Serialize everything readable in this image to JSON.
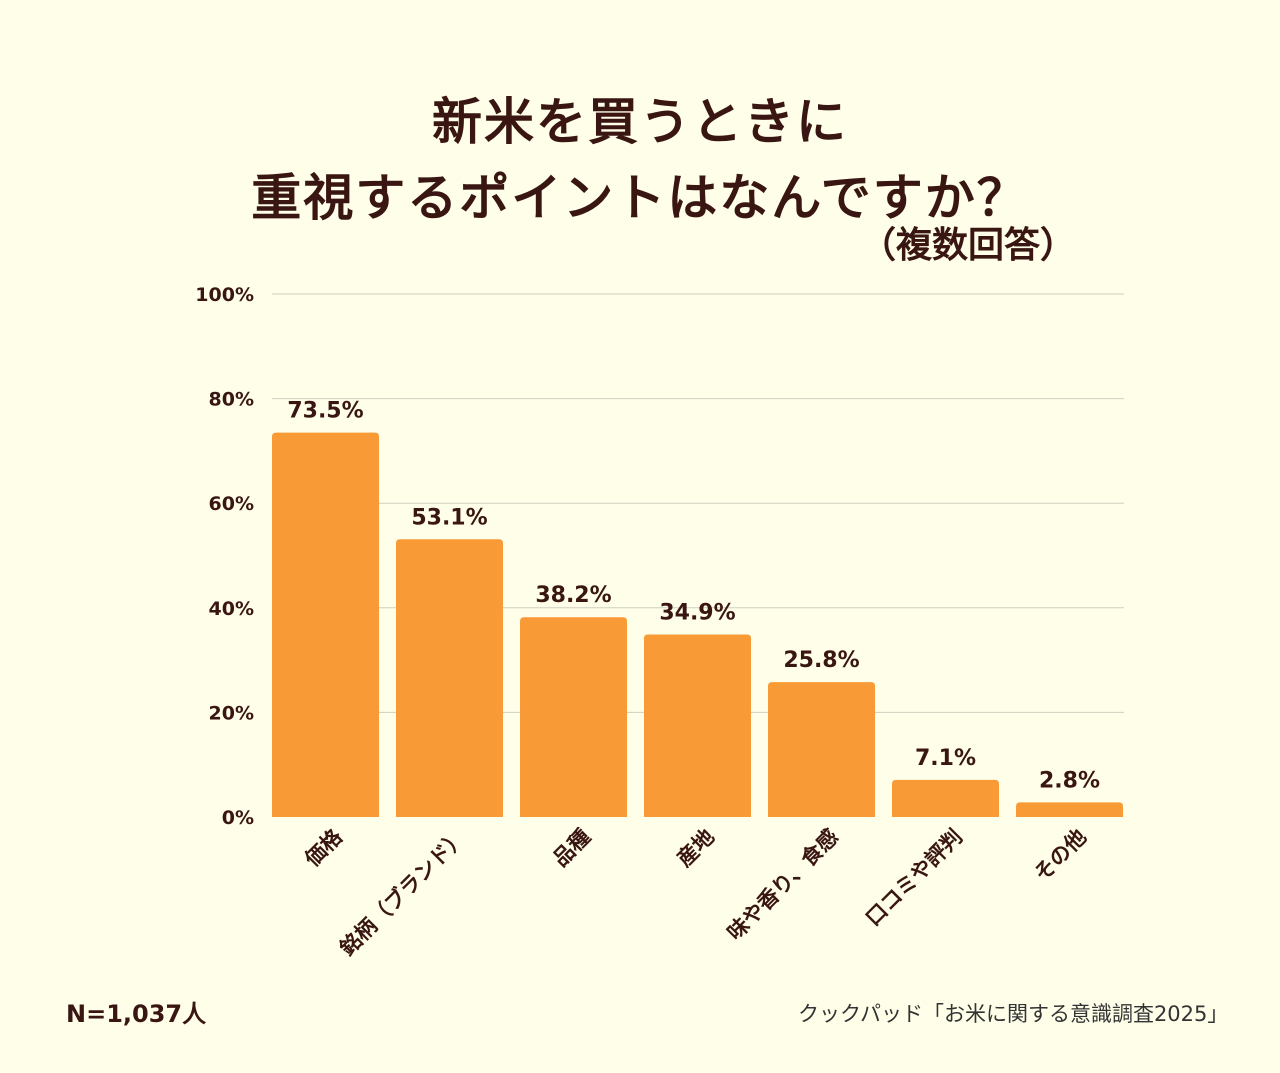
{
  "title_line1": "新米を買うときに",
  "title_line2": "重視するポイントはなんですか？",
  "subtitle": "（複数回答）",
  "sample_size": "N=1,037人",
  "source": "クックパッド「お米に関する意識調査2025」",
  "colors": {
    "background": "#fefee9",
    "bar": "#f89a35",
    "text": "#3a1612",
    "grid": "#cfcfc0"
  },
  "chart_data": {
    "type": "bar",
    "categories": [
      "価格",
      "銘柄（ブランド）",
      "品種",
      "産地",
      "味や香り、食感",
      "口コミや評判",
      "その他"
    ],
    "values": [
      73.5,
      53.1,
      38.2,
      34.9,
      25.8,
      7.1,
      2.8
    ],
    "data_labels": [
      "73.5%",
      "53.1%",
      "38.2%",
      "34.9%",
      "25.8%",
      "7.1%",
      "2.8%"
    ],
    "yticks": [
      "0%",
      "20%",
      "40%",
      "60%",
      "80%",
      "100%"
    ],
    "ytick_values": [
      0,
      20,
      40,
      60,
      80,
      100
    ],
    "ylim": [
      0,
      100
    ],
    "grid": true
  }
}
